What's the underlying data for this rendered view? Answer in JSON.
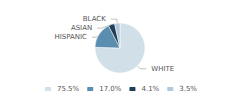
{
  "chart_data": {
    "type": "pie",
    "categories": [
      "WHITE",
      "HISPANIC",
      "ASIAN",
      "BLACK"
    ],
    "values": [
      75.5,
      17.0,
      4.1,
      3.5
    ],
    "value_labels": [
      "75.5%",
      "17.0%",
      "4.1%",
      "3.5%"
    ],
    "colors": [
      "#d0dfe8",
      "#5b8db0",
      "#1e3f5a",
      "#b0c8d8"
    ],
    "legend": "bottom"
  }
}
